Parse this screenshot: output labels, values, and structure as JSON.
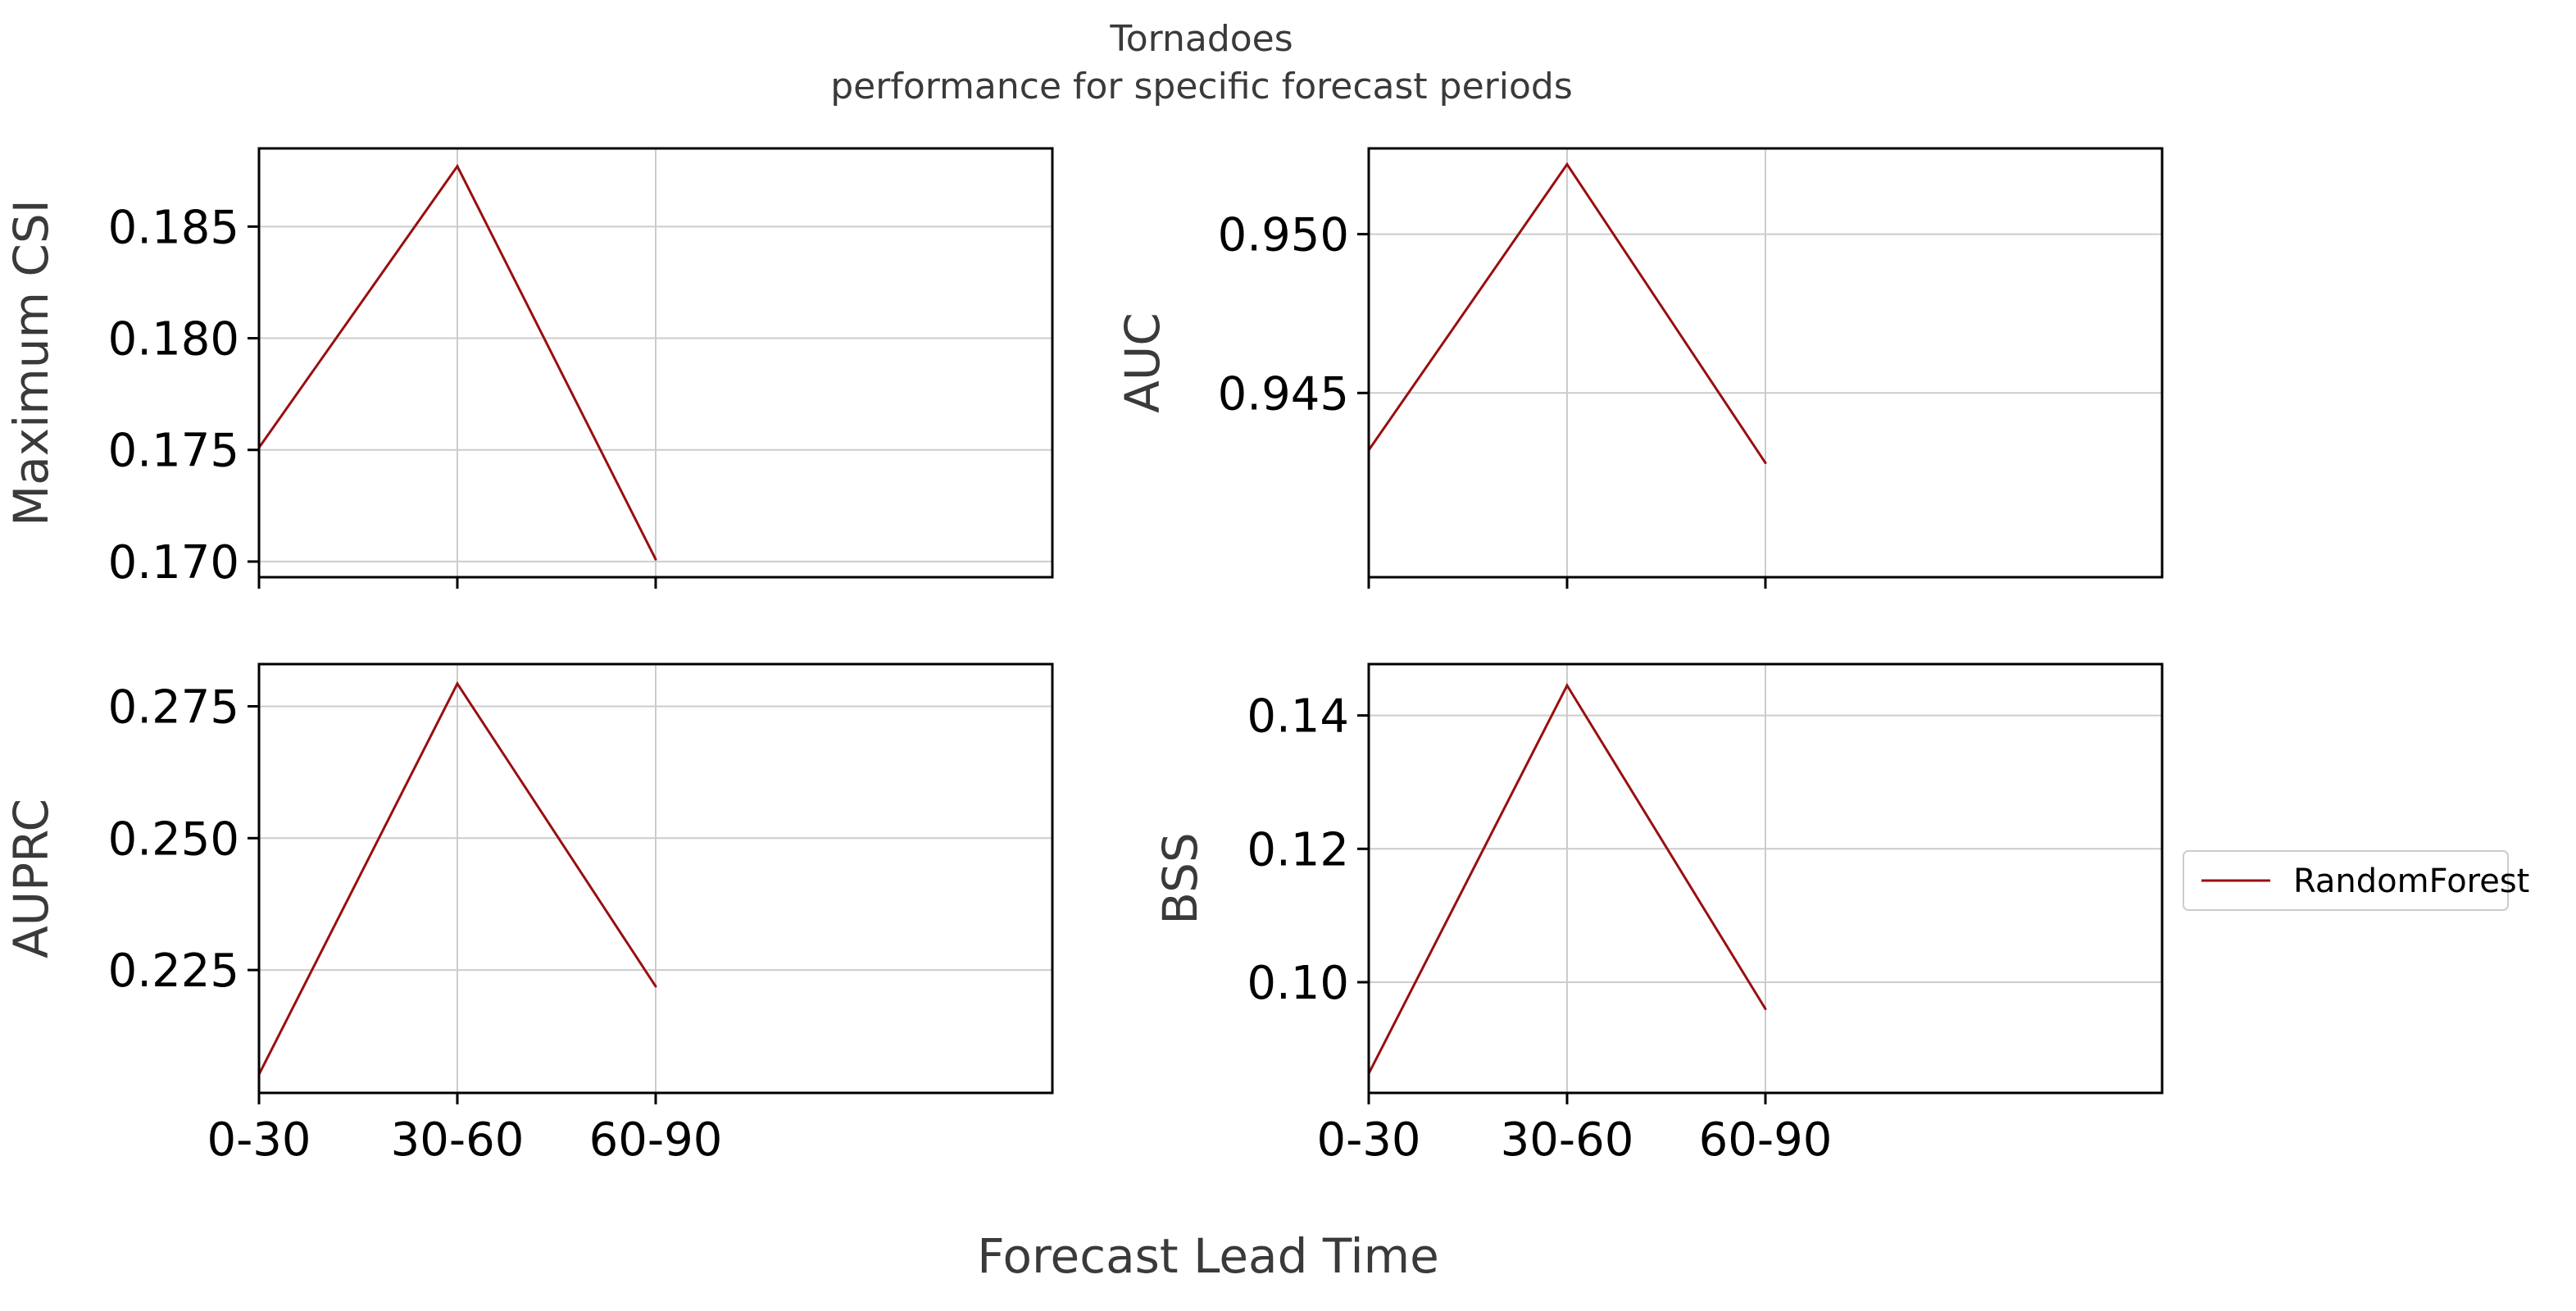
{
  "chart_data": {
    "type": "line",
    "title": "Tornadoes",
    "subtitle": "performance for specific forecast periods",
    "xlabel": "Forecast Lead Time",
    "categories": [
      "0-30",
      "30-60",
      "60-90"
    ],
    "x_range": [
      0,
      4
    ],
    "grid": true,
    "legend": {
      "entries": [
        "RandomForest"
      ],
      "position": "right"
    },
    "series_color": "#990f0f",
    "panels": [
      {
        "ylabel": "Maximum CSI",
        "ylim": [
          0.1693,
          0.1885
        ],
        "yticks": [
          0.17,
          0.175,
          0.18,
          0.185
        ],
        "yticklabels": [
          "0.170",
          "0.175",
          "0.180",
          "0.185"
        ],
        "series": [
          {
            "name": "RandomForest",
            "values": [
              0.1751,
              0.1877,
              0.1701
            ]
          }
        ]
      },
      {
        "ylabel": "AUC",
        "ylim": [
          0.9392,
          0.9527
        ],
        "yticks": [
          0.945,
          0.95
        ],
        "yticklabels": [
          "0.945",
          "0.950"
        ],
        "series": [
          {
            "name": "RandomForest",
            "values": [
              0.9432,
              0.9522,
              0.9428
            ]
          }
        ]
      },
      {
        "ylabel": "AUPRC",
        "ylim": [
          0.2017,
          0.283
        ],
        "yticks": [
          0.225,
          0.25,
          0.275
        ],
        "yticklabels": [
          "0.225",
          "0.250",
          "0.275"
        ],
        "series": [
          {
            "name": "RandomForest",
            "values": [
              0.2052,
              0.2793,
              0.2219
            ]
          }
        ]
      },
      {
        "ylabel": "BSS",
        "ylim": [
          0.0834,
          0.1477
        ],
        "yticks": [
          0.1,
          0.12,
          0.14
        ],
        "yticklabels": [
          "0.10",
          "0.12",
          "0.14"
        ],
        "series": [
          {
            "name": "RandomForest",
            "values": [
              0.0863,
              0.1445,
              0.096
            ]
          }
        ]
      }
    ]
  }
}
